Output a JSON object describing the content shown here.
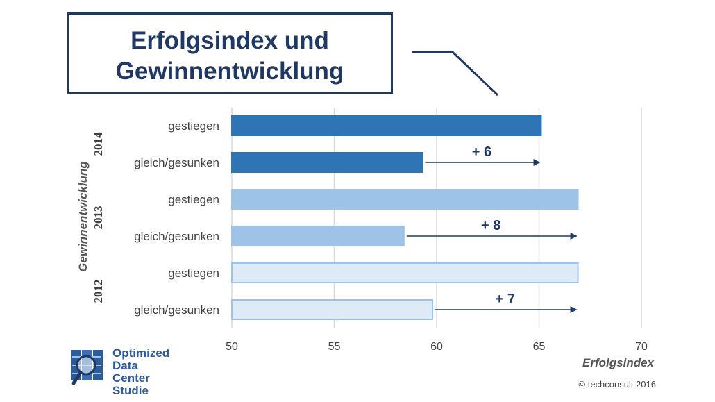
{
  "title": "Erfolgsindex und\nGewinnentwicklung",
  "chart_data": {
    "type": "bar",
    "orientation": "horizontal",
    "xlabel": "Erfolgsindex",
    "ylabel": "Gewinnentwicklung",
    "xlim": [
      50,
      70
    ],
    "x_ticks": [
      50,
      55,
      60,
      65,
      70
    ],
    "grid": true,
    "groups": [
      {
        "year": "2014",
        "color": "#2e75b6",
        "border": "#2e75b6",
        "bars": [
          {
            "label": "gestiegen",
            "value": 65.1
          },
          {
            "label": "gleich/gesunken",
            "value": 59.3
          }
        ],
        "difference_label": "+ 6"
      },
      {
        "year": "2013",
        "color": "#9dc3e6",
        "border": "#9dc3e6",
        "bars": [
          {
            "label": "gestiegen",
            "value": 66.9
          },
          {
            "label": "gleich/gesunken",
            "value": 58.4
          }
        ],
        "difference_label": "+ 8"
      },
      {
        "year": "2012",
        "color": "#deebf7",
        "border": "#9dc3e6",
        "bars": [
          {
            "label": "gestiegen",
            "value": 66.9
          },
          {
            "label": "gleich/gesunken",
            "value": 59.8
          }
        ],
        "difference_label": "+ 7"
      }
    ]
  },
  "logo": {
    "line1": "Optimized",
    "line2": "Data Center",
    "line3": "Studie"
  },
  "copyright": "© techconsult 2016",
  "colors": {
    "title": "#1f3864",
    "arrow": "#1f3864",
    "grid": "#d9d9d9"
  }
}
